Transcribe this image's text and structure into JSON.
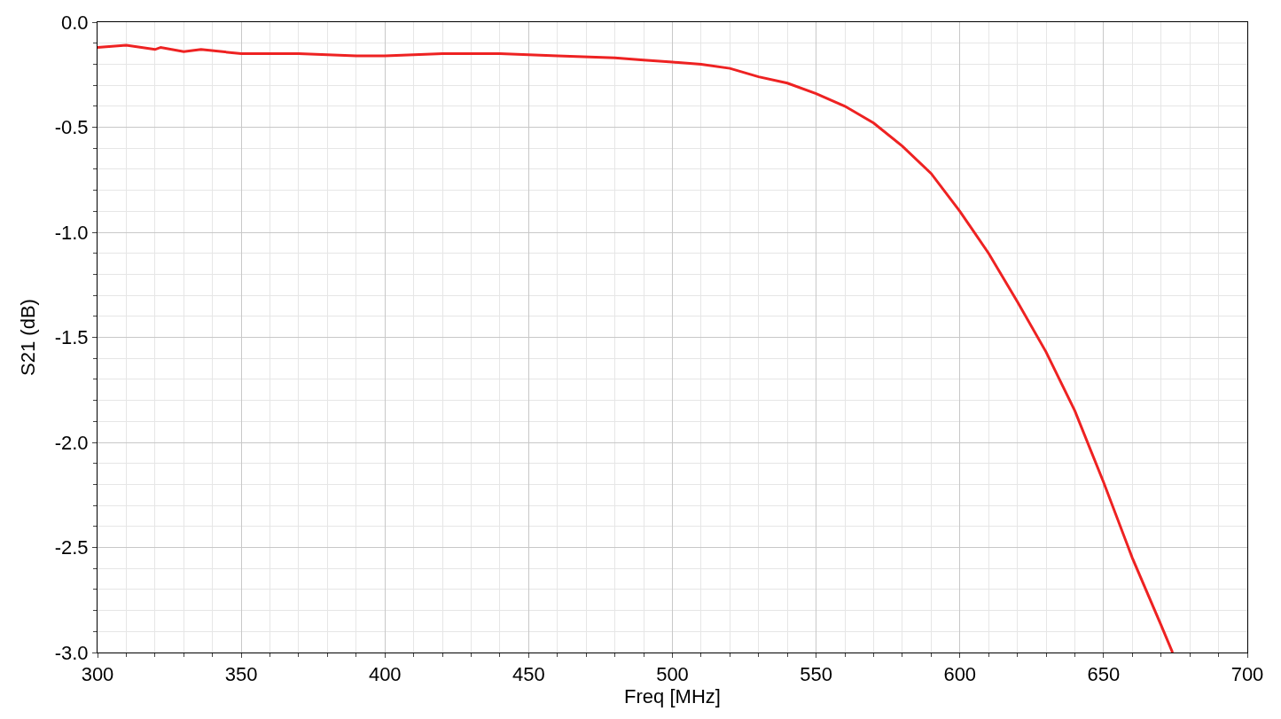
{
  "chart_data": {
    "type": "line",
    "xlabel": "Freq [MHz]",
    "ylabel": "S21 (dB)",
    "x": [
      300,
      310,
      320,
      322,
      330,
      336,
      350,
      370,
      390,
      400,
      420,
      440,
      460,
      480,
      490,
      500,
      510,
      520,
      530,
      540,
      550,
      560,
      570,
      580,
      590,
      600,
      610,
      620,
      630,
      640,
      650,
      660,
      670,
      674
    ],
    "series": [
      {
        "color": "#ee2222",
        "values": [
          -0.12,
          -0.11,
          -0.13,
          -0.12,
          -0.14,
          -0.13,
          -0.15,
          -0.15,
          -0.16,
          -0.16,
          -0.15,
          -0.15,
          -0.16,
          -0.17,
          -0.18,
          -0.19,
          -0.2,
          -0.22,
          -0.26,
          -0.29,
          -0.34,
          -0.4,
          -0.48,
          -0.59,
          -0.72,
          -0.9,
          -1.1,
          -1.33,
          -1.57,
          -1.85,
          -2.19,
          -2.55,
          -2.87,
          -3.0
        ]
      }
    ],
    "xlim": [
      300,
      700
    ],
    "xticks": [
      300,
      350,
      400,
      450,
      500,
      550,
      600,
      650,
      700
    ],
    "ylim": [
      -3.0,
      0.0
    ],
    "yticks": [
      {
        "value": 0,
        "label": "0.0"
      },
      -0.5,
      {
        "value": -1,
        "label": "-1.0"
      },
      -1.5,
      {
        "value": -2,
        "label": "-2.0"
      },
      -2.5,
      {
        "value": -3,
        "label": "-3.0"
      }
    ],
    "grid": true,
    "line_style": "solid"
  }
}
